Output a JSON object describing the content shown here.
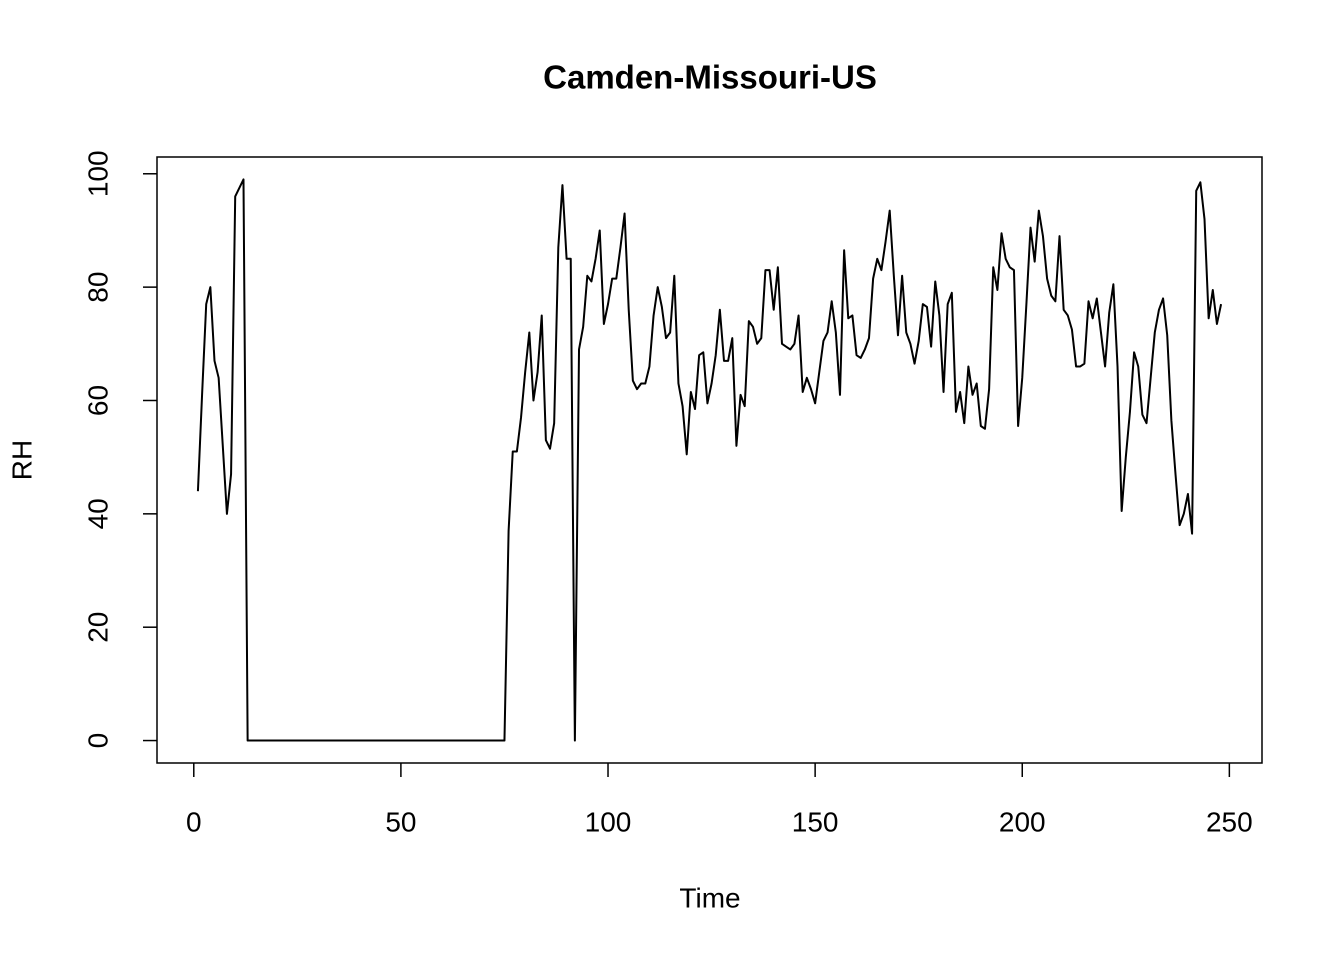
{
  "chart_data": {
    "type": "line",
    "title": "Camden-Missouri-US",
    "x_label": "Time",
    "y_label": "RH",
    "xlim": [
      -8.88,
      257.88
    ],
    "ylim": [
      -3.96,
      102.96
    ],
    "xticks": [
      0,
      50,
      100,
      150,
      200,
      250
    ],
    "yticks": [
      0,
      20,
      40,
      60,
      80,
      100
    ],
    "x": [
      1,
      2,
      3,
      4,
      5,
      6,
      7,
      8,
      9,
      10,
      11,
      12,
      13,
      14,
      15,
      16,
      17,
      18,
      19,
      20,
      21,
      22,
      23,
      24,
      25,
      26,
      27,
      28,
      29,
      30,
      31,
      32,
      33,
      34,
      35,
      36,
      37,
      38,
      39,
      40,
      41,
      42,
      43,
      44,
      45,
      46,
      47,
      48,
      49,
      50,
      51,
      52,
      53,
      54,
      55,
      56,
      57,
      58,
      59,
      60,
      61,
      62,
      63,
      64,
      65,
      66,
      67,
      68,
      69,
      70,
      71,
      72,
      73,
      74,
      75,
      76,
      77,
      78,
      79,
      80,
      81,
      82,
      83,
      84,
      85,
      86,
      87,
      88,
      89,
      90,
      91,
      92,
      93,
      94,
      95,
      96,
      97,
      98,
      99,
      100,
      101,
      102,
      103,
      104,
      105,
      106,
      107,
      108,
      109,
      110,
      111,
      112,
      113,
      114,
      115,
      116,
      117,
      118,
      119,
      120,
      121,
      122,
      123,
      124,
      125,
      126,
      127,
      128,
      129,
      130,
      131,
      132,
      133,
      134,
      135,
      136,
      137,
      138,
      139,
      140,
      141,
      142,
      143,
      144,
      145,
      146,
      147,
      148,
      149,
      150,
      151,
      152,
      153,
      154,
      155,
      156,
      157,
      158,
      159,
      160,
      161,
      162,
      163,
      164,
      165,
      166,
      167,
      168,
      169,
      170,
      171,
      172,
      173,
      174,
      175,
      176,
      177,
      178,
      179,
      180,
      181,
      182,
      183,
      184,
      185,
      186,
      187,
      188,
      189,
      190,
      191,
      192,
      193,
      194,
      195,
      196,
      197,
      198,
      199,
      200,
      201,
      202,
      203,
      204,
      205,
      206,
      207,
      208,
      209,
      210,
      211,
      212,
      213,
      214,
      215,
      216,
      217,
      218,
      219,
      220,
      221,
      222,
      223,
      224,
      225,
      226,
      227,
      228,
      229,
      230,
      231,
      232,
      233,
      234,
      235,
      236,
      237,
      238,
      239,
      240,
      241,
      242,
      243,
      244,
      245,
      246,
      247,
      248
    ],
    "series": [
      {
        "color": "#000000",
        "values": [
          44,
          61,
          77,
          80,
          67,
          64,
          52,
          40,
          47,
          96,
          97.5,
          99,
          0,
          0,
          0,
          0,
          0,
          0,
          0,
          0,
          0,
          0,
          0,
          0,
          0,
          0,
          0,
          0,
          0,
          0,
          0,
          0,
          0,
          0,
          0,
          0,
          0,
          0,
          0,
          0,
          0,
          0,
          0,
          0,
          0,
          0,
          0,
          0,
          0,
          0,
          0,
          0,
          0,
          0,
          0,
          0,
          0,
          0,
          0,
          0,
          0,
          0,
          0,
          0,
          0,
          0,
          0,
          0,
          0,
          0,
          0,
          0,
          0,
          0,
          0,
          37,
          51,
          51,
          57,
          65,
          72,
          60,
          65,
          75,
          53,
          51.5,
          56,
          87,
          98,
          85,
          85,
          0,
          69,
          73,
          82,
          81,
          85,
          90,
          73.5,
          77,
          81.5,
          81.5,
          87,
          93,
          76,
          63.5,
          62,
          63,
          63,
          66,
          75,
          80,
          76.5,
          71,
          72,
          82,
          63,
          59,
          50.5,
          61.5,
          58.5,
          68,
          68.5,
          59.5,
          63,
          68,
          76,
          67,
          67,
          71,
          52,
          61,
          59,
          74,
          73,
          70,
          71,
          83,
          83,
          76,
          83.5,
          70,
          69.5,
          69,
          70,
          75,
          61.5,
          64,
          62,
          59.5,
          65,
          70.5,
          72,
          77.5,
          72,
          61,
          86.5,
          74.5,
          75,
          68,
          67.5,
          69,
          71,
          81.5,
          85,
          83,
          88,
          93.5,
          82,
          71.5,
          82,
          72,
          70,
          66.5,
          70.5,
          77,
          76.5,
          69.5,
          81,
          75,
          61.5,
          77,
          79,
          58,
          61.5,
          56,
          66,
          61,
          63,
          55.5,
          55,
          62,
          83.5,
          79.5,
          89.5,
          85,
          83.5,
          83,
          55.5,
          64,
          77,
          90.5,
          84.5,
          93.5,
          89,
          81.5,
          78.5,
          77.5,
          89,
          76,
          75,
          72.5,
          66,
          66,
          66.5,
          77.5,
          74.5,
          78,
          72,
          66,
          75.5,
          80.5,
          66,
          40.5,
          50,
          58,
          68.5,
          66,
          57.5,
          56,
          64,
          72,
          76,
          78,
          71.5,
          56.5,
          47,
          38,
          40,
          43.5,
          36.5,
          97,
          98.5,
          92,
          74.5,
          79.5,
          73.5,
          77
        ]
      }
    ]
  }
}
